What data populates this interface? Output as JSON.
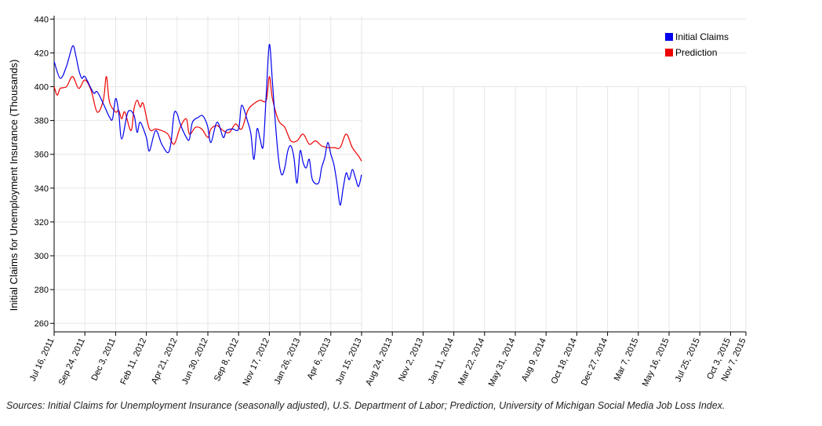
{
  "chart_data": {
    "type": "line",
    "ylabel": "Initial Claims for Unemployment Insurance (Thousands)",
    "ylim": [
      255,
      442
    ],
    "yticks": [
      260,
      280,
      300,
      320,
      340,
      360,
      380,
      400,
      420,
      440
    ],
    "xlim": [
      "2011-07-16",
      "2015-11-07"
    ],
    "xticks": [
      "Jul 16, 2011",
      "Sep 24, 2011",
      "Dec 3, 2011",
      "Feb 11, 2012",
      "Apr 21, 2012",
      "Jun 30, 2012",
      "Sep 8, 2012",
      "Nov 17, 2012",
      "Jan 26, 2013",
      "Apr 6, 2013",
      "Jun 15, 2013",
      "Aug 24, 2013",
      "Nov 2, 2013",
      "Jan 11, 2014",
      "Mar 22, 2014",
      "May 31, 2014",
      "Aug 9, 2014",
      "Oct 18, 2014",
      "Dec 27, 2014",
      "Mar 7, 2015",
      "May 16, 2015",
      "Jul 25, 2015",
      "Oct 3, 2015",
      "Nov 7, 2015"
    ],
    "grid": true,
    "legend_position": "top-right",
    "series": [
      {
        "name": "Initial Claims",
        "color": "#0000ee",
        "x": [
          "2011-07-16",
          "2011-07-30",
          "2011-08-13",
          "2011-08-27",
          "2011-09-03",
          "2011-09-10",
          "2011-09-17",
          "2011-09-24",
          "2011-10-08",
          "2011-10-15",
          "2011-10-22",
          "2011-11-05",
          "2011-11-19",
          "2011-11-26",
          "2011-12-03",
          "2011-12-10",
          "2011-12-17",
          "2011-12-31",
          "2012-01-14",
          "2012-01-21",
          "2012-01-28",
          "2012-02-11",
          "2012-02-18",
          "2012-03-03",
          "2012-03-17",
          "2012-03-31",
          "2012-04-07",
          "2012-04-14",
          "2012-04-21",
          "2012-04-28",
          "2012-05-12",
          "2012-05-19",
          "2012-05-26",
          "2012-06-09",
          "2012-06-16",
          "2012-06-23",
          "2012-06-30",
          "2012-07-07",
          "2012-07-21",
          "2012-08-04",
          "2012-08-11",
          "2012-08-25",
          "2012-09-08",
          "2012-09-15",
          "2012-09-29",
          "2012-10-06",
          "2012-10-13",
          "2012-10-20",
          "2012-10-27",
          "2012-11-03",
          "2012-11-10",
          "2012-11-17",
          "2012-11-24",
          "2012-12-01",
          "2012-12-08",
          "2012-12-15",
          "2012-12-22",
          "2012-12-29",
          "2013-01-05",
          "2013-01-12",
          "2013-01-19",
          "2013-01-26",
          "2013-02-02",
          "2013-02-09",
          "2013-02-16",
          "2013-02-23",
          "2013-03-09",
          "2013-03-16",
          "2013-03-23",
          "2013-03-30",
          "2013-04-06",
          "2013-04-13",
          "2013-04-20",
          "2013-04-27",
          "2013-05-04",
          "2013-05-11",
          "2013-05-18",
          "2013-05-25",
          "2013-06-01",
          "2013-06-08",
          "2013-06-15"
        ],
        "y": [
          415,
          405,
          412,
          424,
          419,
          410,
          405,
          406,
          399,
          396,
          397,
          390,
          382,
          381,
          393,
          385,
          369,
          385,
          383,
          373,
          379,
          370,
          362,
          374,
          366,
          361,
          367,
          384,
          384,
          378,
          370,
          369,
          379,
          382,
          383,
          381,
          376,
          367,
          379,
          370,
          374,
          375,
          375,
          389,
          379,
          372,
          357,
          375,
          369,
          365,
          396,
          425,
          403,
          378,
          357,
          348,
          352,
          362,
          365,
          358,
          343,
          362,
          355,
          352,
          357,
          345,
          343,
          352,
          358,
          367,
          360,
          354,
          343,
          330,
          340,
          349,
          345,
          351,
          346,
          341,
          348
        ]
      },
      {
        "name": "Prediction",
        "color": "#ee0000",
        "x": [
          "2011-07-16",
          "2011-07-23",
          "2011-07-30",
          "2011-08-13",
          "2011-08-27",
          "2011-09-10",
          "2011-09-24",
          "2011-10-08",
          "2011-10-22",
          "2011-11-05",
          "2011-11-12",
          "2011-11-19",
          "2011-12-03",
          "2011-12-10",
          "2011-12-17",
          "2011-12-24",
          "2012-01-07",
          "2012-01-14",
          "2012-01-21",
          "2012-01-28",
          "2012-02-04",
          "2012-02-18",
          "2012-03-03",
          "2012-03-17",
          "2012-03-31",
          "2012-04-14",
          "2012-04-28",
          "2012-05-12",
          "2012-05-19",
          "2012-06-02",
          "2012-06-16",
          "2012-06-30",
          "2012-07-07",
          "2012-07-21",
          "2012-08-04",
          "2012-08-18",
          "2012-09-01",
          "2012-09-15",
          "2012-09-29",
          "2012-10-13",
          "2012-10-27",
          "2012-11-10",
          "2012-11-17",
          "2012-11-24",
          "2012-12-08",
          "2012-12-22",
          "2013-01-05",
          "2013-01-19",
          "2013-02-02",
          "2013-02-16",
          "2013-03-02",
          "2013-03-16",
          "2013-03-30",
          "2013-04-13",
          "2013-04-27",
          "2013-05-11",
          "2013-05-25",
          "2013-06-08",
          "2013-06-15"
        ],
        "y": [
          400,
          395,
          399,
          400,
          406,
          399,
          404,
          398,
          385,
          392,
          406,
          391,
          385,
          386,
          381,
          385,
          374,
          387,
          392,
          388,
          390,
          375,
          375,
          374,
          372,
          366,
          376,
          381,
          372,
          376,
          375,
          370,
          375,
          377,
          374,
          373,
          378,
          375,
          386,
          390,
          392,
          392,
          406,
          393,
          380,
          376,
          368,
          368,
          372,
          366,
          368,
          365,
          364,
          364,
          364,
          372,
          364,
          359,
          356
        ]
      }
    ]
  },
  "source_note": "Sources: Initial Claims for Unemployment Insurance (seasonally adjusted), U.S. Department of Labor; Prediction, University of Michigan Social Media Job Loss Index."
}
